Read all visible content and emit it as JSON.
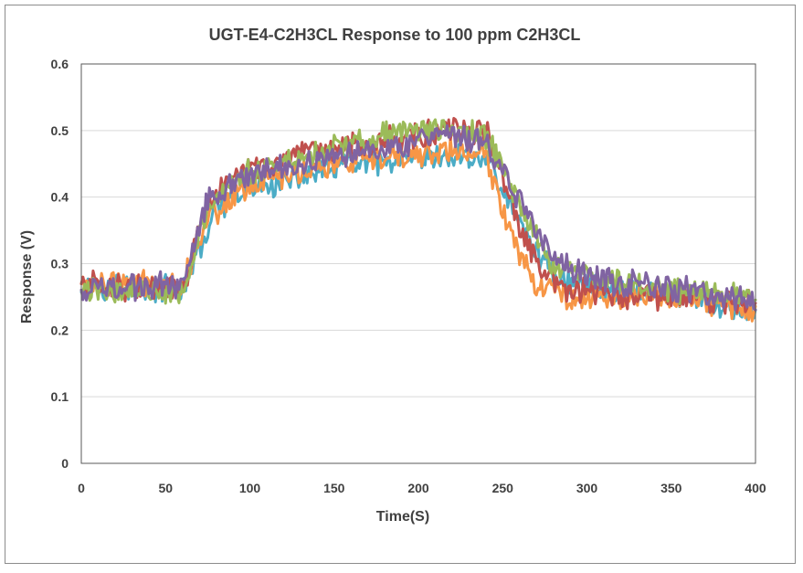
{
  "chart_data": {
    "type": "line",
    "title": "UGT-E4-C2H3CL Response to 100 ppm C2H3CL",
    "xlabel": "Time(S)",
    "ylabel": "Response (V)",
    "xlim": [
      0,
      400
    ],
    "ylim": [
      0,
      0.6
    ],
    "xticks": [
      "0",
      "50",
      "100",
      "150",
      "200",
      "250",
      "300",
      "350",
      "400"
    ],
    "yticks": [
      "0",
      "0.1",
      "0.2",
      "0.3",
      "0.4",
      "0.5",
      "0.6"
    ],
    "grid": true,
    "legend": "none",
    "series": [
      {
        "color": "#4bacc6",
        "values": [
          [
            0,
            0.27
          ],
          [
            60,
            0.26
          ],
          [
            80,
            0.38
          ],
          [
            100,
            0.41
          ],
          [
            130,
            0.43
          ],
          [
            160,
            0.45
          ],
          [
            190,
            0.45
          ],
          [
            220,
            0.46
          ],
          [
            240,
            0.46
          ],
          [
            250,
            0.41
          ],
          [
            260,
            0.36
          ],
          [
            275,
            0.3
          ],
          [
            290,
            0.27
          ],
          [
            320,
            0.26
          ],
          [
            360,
            0.25
          ],
          [
            400,
            0.22
          ]
        ]
      },
      {
        "color": "#f79646",
        "values": [
          [
            0,
            0.27
          ],
          [
            60,
            0.27
          ],
          [
            75,
            0.37
          ],
          [
            100,
            0.42
          ],
          [
            130,
            0.44
          ],
          [
            160,
            0.45
          ],
          [
            190,
            0.46
          ],
          [
            220,
            0.47
          ],
          [
            240,
            0.46
          ],
          [
            250,
            0.38
          ],
          [
            260,
            0.32
          ],
          [
            270,
            0.27
          ],
          [
            290,
            0.25
          ],
          [
            320,
            0.25
          ],
          [
            360,
            0.25
          ],
          [
            400,
            0.23
          ]
        ]
      },
      {
        "color": "#c0504d",
        "values": [
          [
            0,
            0.27
          ],
          [
            60,
            0.26
          ],
          [
            75,
            0.39
          ],
          [
            95,
            0.44
          ],
          [
            130,
            0.46
          ],
          [
            160,
            0.48
          ],
          [
            190,
            0.49
          ],
          [
            220,
            0.5
          ],
          [
            240,
            0.5
          ],
          [
            250,
            0.43
          ],
          [
            260,
            0.35
          ],
          [
            275,
            0.28
          ],
          [
            290,
            0.26
          ],
          [
            320,
            0.25
          ],
          [
            360,
            0.25
          ],
          [
            400,
            0.24
          ]
        ]
      },
      {
        "color": "#9bbb59",
        "values": [
          [
            0,
            0.26
          ],
          [
            60,
            0.26
          ],
          [
            75,
            0.38
          ],
          [
            95,
            0.43
          ],
          [
            130,
            0.46
          ],
          [
            160,
            0.48
          ],
          [
            190,
            0.5
          ],
          [
            220,
            0.5
          ],
          [
            240,
            0.49
          ],
          [
            255,
            0.42
          ],
          [
            265,
            0.36
          ],
          [
            280,
            0.3
          ],
          [
            300,
            0.28
          ],
          [
            330,
            0.27
          ],
          [
            360,
            0.26
          ],
          [
            400,
            0.25
          ]
        ]
      },
      {
        "color": "#8064a2",
        "values": [
          [
            0,
            0.26
          ],
          [
            60,
            0.27
          ],
          [
            75,
            0.4
          ],
          [
            95,
            0.43
          ],
          [
            130,
            0.45
          ],
          [
            160,
            0.47
          ],
          [
            190,
            0.48
          ],
          [
            220,
            0.49
          ],
          [
            240,
            0.48
          ],
          [
            255,
            0.42
          ],
          [
            265,
            0.37
          ],
          [
            280,
            0.31
          ],
          [
            300,
            0.28
          ],
          [
            330,
            0.27
          ],
          [
            360,
            0.26
          ],
          [
            400,
            0.24
          ]
        ]
      }
    ]
  }
}
